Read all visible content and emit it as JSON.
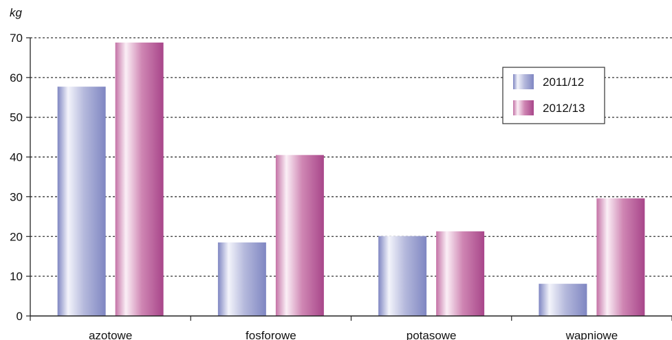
{
  "chart_data": {
    "type": "bar",
    "unit_label": "kg",
    "categories": [
      "azotowe",
      "fosforowe",
      "potasowe",
      "wapniowe"
    ],
    "series": [
      {
        "name": "2011/12",
        "values": [
          57.7,
          18.5,
          20.1,
          8.1
        ],
        "color": "#8d93c9"
      },
      {
        "name": "2012/13",
        "values": [
          68.8,
          40.5,
          21.3,
          29.6
        ],
        "color": "#b65a94"
      }
    ],
    "ylim": [
      0,
      70
    ],
    "yticks": [
      "0",
      "10",
      "20",
      "30",
      "40",
      "50",
      "60",
      "70"
    ],
    "grid": true,
    "legend_position": "top-right"
  }
}
